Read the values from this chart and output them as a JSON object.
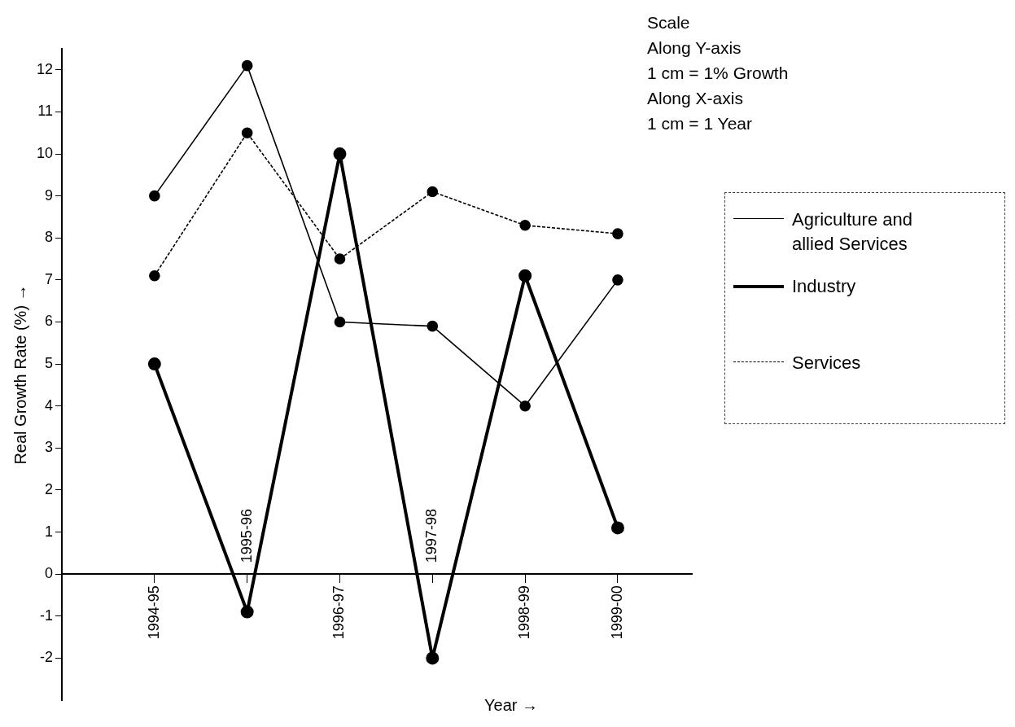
{
  "chart_data": {
    "type": "line",
    "xlabel": "Year →",
    "ylabel": "Real Growth Rate (%) →",
    "annotations": [
      "Scale",
      "Along Y-axis",
      "1 cm = 1% Growth",
      "Along X-axis",
      "1 cm = 1 Year"
    ],
    "categories": [
      "1994-95",
      "1995-96",
      "1996-97",
      "1997-98",
      "1998-99",
      "1999-00"
    ],
    "series": [
      {
        "name": "Agriculture and allied Services",
        "color": "#000000",
        "values": [
          9,
          12.1,
          6,
          5.9,
          4,
          7
        ]
      },
      {
        "name": "Industry",
        "color": "#000000",
        "values": [
          5,
          -0.9,
          10,
          -2,
          7.1,
          1.1
        ]
      },
      {
        "name": "Services",
        "color": "#000000",
        "line_style": "dashed",
        "values": [
          7.1,
          10.5,
          7.5,
          9.1,
          8.3,
          8.1
        ]
      }
    ],
    "ylim": [
      -3,
      12.5
    ],
    "yticks": [
      -2,
      -1,
      0,
      1,
      2,
      3,
      4,
      5,
      6,
      7,
      8,
      9,
      10,
      11,
      12
    ],
    "grid": false,
    "legend": "right",
    "marker": "circle"
  }
}
